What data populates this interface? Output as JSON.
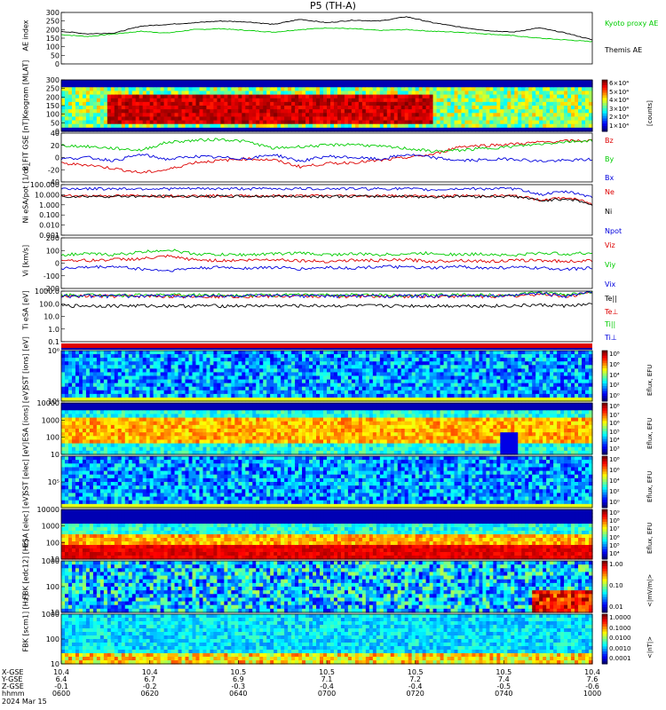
{
  "title": "P5 (TH-A)",
  "chart_data": [
    {
      "type": "line",
      "panel_label": "AE index",
      "ylim": [
        0,
        300
      ],
      "yticks": [
        "300",
        "250",
        "200",
        "150",
        "100",
        "50",
        "0"
      ],
      "series": [
        {
          "name": "Kyoto proxy AE",
          "color": "#00cc00",
          "values": [
            170,
            160,
            175,
            190,
            180,
            200,
            205,
            195,
            185,
            200,
            210,
            205,
            195,
            200,
            190,
            185,
            175,
            165,
            150,
            140,
            130
          ]
        },
        {
          "name": "Themis AE",
          "color": "#000000",
          "values": [
            190,
            175,
            180,
            220,
            230,
            240,
            250,
            245,
            230,
            260,
            240,
            255,
            250,
            275,
            240,
            215,
            195,
            185,
            210,
            180,
            140
          ]
        }
      ]
    },
    {
      "type": "heatmap",
      "panel_label": "Keogram [MLAT]",
      "panel_label_display": "Keogram\n[MLAT]",
      "yticks": [
        "300",
        "250",
        "200",
        "150",
        "100",
        "50",
        "0"
      ],
      "colorbar": {
        "title": "[counts]",
        "ticks": [
          "6×10⁴",
          "5×10⁴",
          "4×10⁴",
          "3×10⁴",
          "2×10⁴",
          "1×10⁴"
        ]
      }
    },
    {
      "type": "line",
      "panel_label": "B_FIT GSE [nT]",
      "panel_label_display": "B_FIT\nGSE\n[nT]",
      "ylim": [
        -40,
        40
      ],
      "yticks": [
        "40",
        "20",
        "0",
        "-20",
        "-40"
      ],
      "series": [
        {
          "name": "Bz",
          "color": "#dd0000",
          "values": [
            -10,
            -12,
            -18,
            -25,
            -20,
            -8,
            -5,
            -2,
            -4,
            -15,
            -10,
            -8,
            -5,
            0,
            5,
            18,
            20,
            22,
            25,
            27,
            28
          ]
        },
        {
          "name": "By",
          "color": "#00cc00",
          "values": [
            20,
            18,
            15,
            12,
            25,
            28,
            30,
            26,
            15,
            18,
            20,
            22,
            18,
            15,
            10,
            12,
            15,
            18,
            22,
            26,
            28
          ]
        },
        {
          "name": "Bx",
          "color": "#0000dd",
          "values": [
            -2,
            0,
            -5,
            5,
            -3,
            2,
            0,
            -2,
            5,
            -6,
            2,
            0,
            -3,
            5,
            0,
            -5,
            -4,
            -2,
            -6,
            -5,
            -3
          ]
        }
      ]
    },
    {
      "type": "line",
      "panel_label": "Ni eSA/pot [1/cc]",
      "panel_label_display": "Ni\neSA/pot\n[1/cc]",
      "yscale": "log",
      "yticks": [
        "100.000",
        "10.000",
        "1.000",
        "0.100",
        "0.010",
        "0.001"
      ],
      "series": [
        {
          "name": "Ne",
          "color": "#dd0000",
          "values": [
            8,
            8,
            8,
            8,
            8,
            8,
            8,
            8,
            8,
            8,
            8,
            8,
            8,
            8,
            7,
            8,
            8,
            8,
            3,
            5,
            1
          ]
        },
        {
          "name": "Ni",
          "color": "#000000",
          "values": [
            7,
            7,
            7,
            7,
            7,
            7,
            7,
            7,
            7,
            7,
            7,
            7,
            7,
            7,
            6,
            7,
            7,
            7,
            2.5,
            4,
            0.8
          ]
        },
        {
          "name": "Npot",
          "color": "#0000dd",
          "values": [
            40,
            40,
            40,
            40,
            40,
            40,
            40,
            40,
            40,
            40,
            40,
            40,
            40,
            40,
            30,
            40,
            40,
            40,
            10,
            20,
            5
          ]
        }
      ]
    },
    {
      "type": "line",
      "panel_label": "Vi [km/s]",
      "panel_label_display": "Vi\n[km/s]",
      "ylim": [
        -300,
        300
      ],
      "yticks": [
        "200",
        "100",
        "0",
        "-100",
        "-200"
      ],
      "series": [
        {
          "name": "Viz",
          "color": "#dd0000",
          "values": [
            40,
            30,
            45,
            50,
            80,
            40,
            30,
            35,
            45,
            30,
            20,
            35,
            30,
            40,
            20,
            35,
            20,
            30,
            35,
            20,
            30
          ]
        },
        {
          "name": "Viy",
          "color": "#00cc00",
          "values": [
            100,
            110,
            100,
            130,
            160,
            110,
            100,
            100,
            110,
            120,
            100,
            110,
            100,
            110,
            120,
            100,
            110,
            90,
            120,
            110,
            120
          ]
        },
        {
          "name": "Vix",
          "color": "#0000dd",
          "values": [
            -60,
            -50,
            -40,
            -70,
            -90,
            -60,
            -50,
            -60,
            -50,
            -70,
            -50,
            -60,
            -40,
            -50,
            -60,
            -40,
            -60,
            -50,
            -60,
            -70,
            -60
          ]
        }
      ]
    },
    {
      "type": "line",
      "panel_label": "Ti eSA [eV]",
      "panel_label_display": "Ti\neSA\n[eV]",
      "yscale": "log",
      "yticks": [
        "1000.0",
        "100.0",
        "10.0",
        "1.0",
        "0.1"
      ],
      "series": [
        {
          "name": "Te||",
          "color": "#000000",
          "values": [
            70,
            70,
            70,
            70,
            70,
            70,
            70,
            70,
            70,
            70,
            70,
            70,
            70,
            70,
            70,
            70,
            70,
            70,
            80,
            70,
            90
          ]
        },
        {
          "name": "Te⊥",
          "color": "#dd0000",
          "values": [
            400,
            400,
            400,
            400,
            400,
            400,
            400,
            400,
            400,
            400,
            400,
            400,
            400,
            400,
            400,
            400,
            400,
            400,
            600,
            400,
            700
          ]
        },
        {
          "name": "Ti||",
          "color": "#00cc00",
          "values": [
            500,
            500,
            500,
            500,
            500,
            500,
            500,
            500,
            500,
            500,
            500,
            500,
            500,
            500,
            500,
            500,
            500,
            500,
            800,
            500,
            900
          ]
        },
        {
          "name": "Ti⊥",
          "color": "#0000dd",
          "values": [
            420,
            420,
            420,
            420,
            420,
            420,
            420,
            420,
            420,
            420,
            420,
            420,
            420,
            420,
            420,
            420,
            420,
            420,
            700,
            420,
            800
          ]
        }
      ]
    },
    {
      "type": "heatmap",
      "panel_label": "SST [ions] [eV]",
      "panel_label_display": "SST\n[ions]\n[eV]",
      "yticks": [
        "10⁶",
        "10⁵"
      ],
      "colorbar": {
        "title": "Eflux, EFU",
        "ticks": [
          "10⁸",
          "10⁶",
          "10⁴",
          "10²",
          "10⁰"
        ]
      }
    },
    {
      "type": "heatmap",
      "panel_label": "ESA [ions] [eV]",
      "panel_label_display": "ESA\n[ions]\n[eV]",
      "yticks": [
        "10000",
        "1000",
        "100",
        "10"
      ],
      "colorbar": {
        "title": "Eflux, EFU",
        "ticks": [
          "10⁸",
          "10⁷",
          "10⁶",
          "10⁵",
          "10⁴",
          "10³"
        ]
      }
    },
    {
      "type": "heatmap",
      "panel_label": "SST [elec] [eV]",
      "panel_label_display": "SST\n[elec]\n[eV]",
      "yticks": [
        "10⁵"
      ],
      "colorbar": {
        "title": "Eflux, EFU",
        "ticks": [
          "10⁸",
          "10⁶",
          "10⁴",
          "10²",
          "10⁰"
        ]
      }
    },
    {
      "type": "heatmap",
      "panel_label": "ESA [elec] [eV]",
      "panel_label_display": "ESA\n[elec]\n[eV]",
      "yticks": [
        "10000",
        "1000",
        "100",
        "10"
      ],
      "colorbar": {
        "title": "Eflux, EFU",
        "ticks": [
          "10⁹",
          "10⁸",
          "10⁷",
          "10⁶",
          "10⁵",
          "10⁴"
        ]
      }
    },
    {
      "type": "heatmap",
      "panel_label": "FBK [edc12] [Hz]",
      "panel_label_display": "FBK\n[edc12]\n[Hz]",
      "yticks": [
        "1000",
        "100",
        "10"
      ],
      "colorbar": {
        "title": "<|mV/m|>",
        "ticks": [
          "1.00",
          "0.10",
          "0.01"
        ]
      }
    },
    {
      "type": "heatmap",
      "panel_label": "FBK [scm1] [Hz]",
      "panel_label_display": "FBK\n[scm1]\n[Hz]",
      "yticks": [
        "1000",
        "100",
        "10"
      ],
      "colorbar": {
        "title": "<|nT|>",
        "ticks": [
          "1.0000",
          "0.1000",
          "0.0100",
          "0.0010",
          "0.0001"
        ]
      }
    }
  ],
  "footer": {
    "row_labels": [
      "X-GSE",
      "Y-GSE",
      "Z-GSE",
      "hhmm",
      "2024 Mar 15"
    ],
    "ticks": [
      {
        "x": "10.4",
        "y": "6.4",
        "z": "-0.1",
        "t": "0600"
      },
      {
        "x": "10.4",
        "y": "6.7",
        "z": "-0.2",
        "t": "0620"
      },
      {
        "x": "10.5",
        "y": "6.9",
        "z": "-0.3",
        "t": "0640"
      },
      {
        "x": "10.5",
        "y": "7.1",
        "z": "-0.4",
        "t": "0700"
      },
      {
        "x": "10.5",
        "y": "7.2",
        "z": "-0.4",
        "t": "0720"
      },
      {
        "x": "10.5",
        "y": "7.4",
        "z": "-0.5",
        "t": "0740"
      },
      {
        "x": "10.4",
        "y": "7.6",
        "z": "-0.6",
        "t": "1000"
      }
    ]
  }
}
